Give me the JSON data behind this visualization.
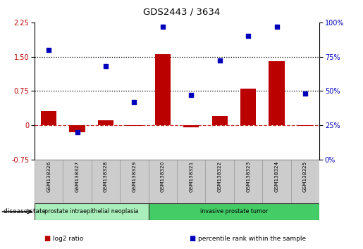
{
  "title": "GDS2443 / 3634",
  "samples": [
    "GSM138326",
    "GSM138327",
    "GSM138328",
    "GSM138329",
    "GSM138320",
    "GSM138321",
    "GSM138322",
    "GSM138323",
    "GSM138324",
    "GSM138325"
  ],
  "log2_ratio": [
    0.3,
    -0.15,
    0.1,
    -0.02,
    1.55,
    -0.05,
    0.2,
    0.8,
    1.4,
    -0.02
  ],
  "percentile_rank": [
    80,
    20,
    68,
    42,
    97,
    47,
    72,
    90,
    97,
    48
  ],
  "bar_color": "#BB0000",
  "dot_color": "#0000BB",
  "left_ylim": [
    -0.75,
    2.25
  ],
  "right_ylim": [
    0,
    100
  ],
  "left_yticks": [
    -0.75,
    0,
    0.75,
    1.5,
    2.25
  ],
  "right_yticks": [
    0,
    25,
    50,
    75,
    100
  ],
  "hline_y": [
    0.75,
    1.5
  ],
  "disease_groups": [
    {
      "label": "prostate intraepithelial neoplasia",
      "start": 0,
      "end": 4,
      "color": "#AAEEBB"
    },
    {
      "label": "invasive prostate tumor",
      "start": 4,
      "end": 10,
      "color": "#44CC66"
    }
  ],
  "disease_state_label": "disease state",
  "legend_items": [
    {
      "label": "log2 ratio",
      "color": "#BB0000"
    },
    {
      "label": "percentile rank within the sample",
      "color": "#0000BB"
    }
  ],
  "background_color": "#FFFFFF",
  "plot_bg_color": "#FFFFFF",
  "dotted_line_color": "#000000",
  "zero_dashed_color": "#BB0000",
  "label_box_color": "#CCCCCC",
  "label_box_edge": "#999999"
}
